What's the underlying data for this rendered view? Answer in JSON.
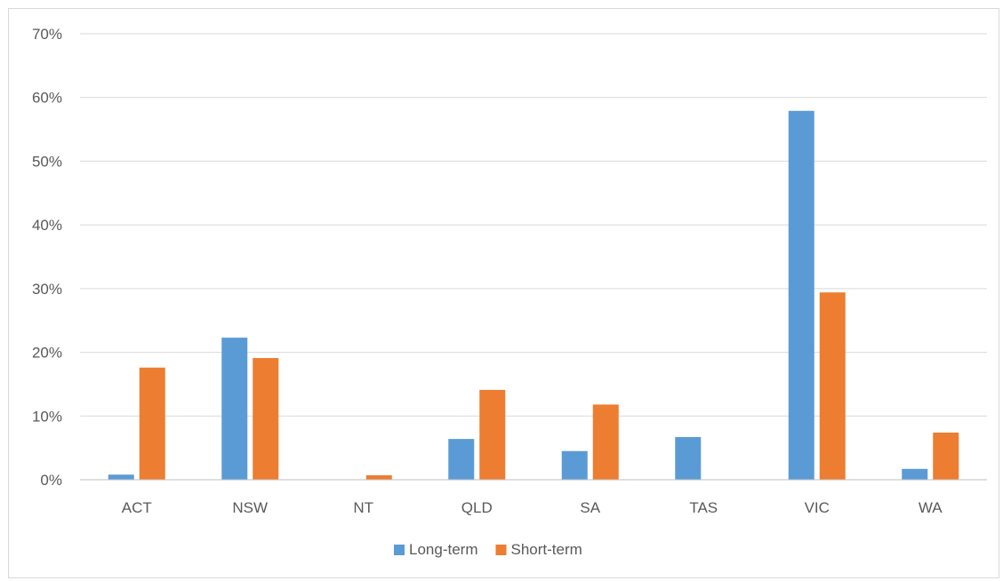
{
  "chart_data": {
    "type": "bar",
    "categories": [
      "ACT",
      "NSW",
      "NT",
      "QLD",
      "SA",
      "TAS",
      "VIC",
      "WA"
    ],
    "series": [
      {
        "name": "Long-term",
        "color": "#5b9bd5",
        "values": [
          0.8,
          22.3,
          0,
          6.4,
          4.5,
          6.7,
          57.9,
          1.7
        ]
      },
      {
        "name": "Short-term",
        "color": "#ed7d31",
        "values": [
          17.6,
          19.1,
          0.7,
          14.1,
          11.8,
          0,
          29.4,
          7.4
        ]
      }
    ],
    "ylim": [
      0,
      70
    ],
    "yticks": [
      0,
      10,
      20,
      30,
      40,
      50,
      60,
      70
    ],
    "ytick_labels": [
      "0%",
      "10%",
      "20%",
      "30%",
      "40%",
      "50%",
      "60%",
      "70%"
    ],
    "y_unit": "%",
    "title": "",
    "xlabel": "",
    "ylabel": "",
    "grid": true,
    "legend_position": "bottom",
    "gridline_color": "#d9d9d9",
    "axis_color": "#bfbfbf",
    "text_color": "#595959"
  }
}
